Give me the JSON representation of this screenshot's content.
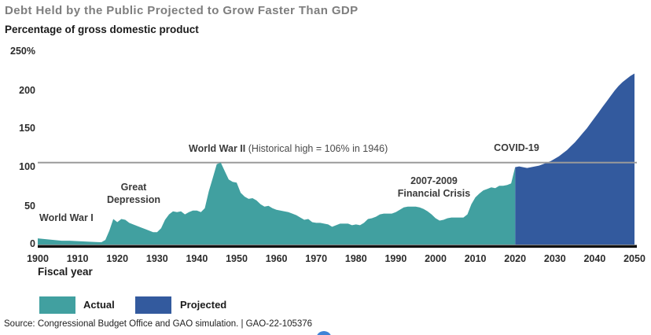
{
  "header": {
    "title": "Debt Held by the Public Projected to Grow Faster Than GDP",
    "subtitle": "Percentage of gross domestic product"
  },
  "y_axis": {
    "labels": [
      "250%",
      "200",
      "150",
      "100",
      "50",
      "0"
    ]
  },
  "x_axis": {
    "title": "Fiscal year",
    "labels": [
      "1900",
      "1910",
      "1920",
      "1930",
      "1940",
      "1950",
      "1960",
      "1970",
      "1980",
      "1990",
      "2000",
      "2010",
      "2020",
      "2030",
      "2040",
      "2050"
    ]
  },
  "annotations": {
    "ww1": "World War I",
    "great_depression_line1": "Great",
    "great_depression_line2": "Depression",
    "ww2": "World War II",
    "ww2_note": "(Historical high = 106% in 1946)",
    "financial_crisis_line1": "2007-2009",
    "financial_crisis_line2": "Financial Crisis",
    "covid": "COVID-19"
  },
  "legend": [
    {
      "label": "Actual",
      "color": "#41a0a0"
    },
    {
      "label": "Projected",
      "color": "#335a9e"
    }
  ],
  "source": "Source: Congressional Budget Office and GAO simulation.  |  GAO-22-105376",
  "colors": {
    "actual_fill": "#41a0a0",
    "projected_fill": "#335a9e",
    "historical_high_line": "#9a9a9a",
    "axis_line": "#111111",
    "play_dot": "#3f83d6"
  },
  "chart_data": {
    "type": "area",
    "title": "Debt Held by the Public Projected to Grow Faster Than GDP",
    "ylabel": "Percentage of gross domestic product",
    "xlabel": "Fiscal year",
    "x_range": [
      1900,
      2050
    ],
    "ylim": [
      0,
      250
    ],
    "grid": false,
    "legend_position": "bottom",
    "reference_line": {
      "value": 106,
      "label": "Historical high = 106% in 1946"
    },
    "series": [
      {
        "name": "Actual",
        "color": "#41a0a0",
        "points": [
          [
            1900,
            8
          ],
          [
            1902,
            7
          ],
          [
            1904,
            6
          ],
          [
            1906,
            5
          ],
          [
            1908,
            5
          ],
          [
            1910,
            4.5
          ],
          [
            1912,
            4
          ],
          [
            1914,
            3.5
          ],
          [
            1916,
            3
          ],
          [
            1917,
            6
          ],
          [
            1918,
            18
          ],
          [
            1919,
            33
          ],
          [
            1920,
            29
          ],
          [
            1921,
            33
          ],
          [
            1922,
            32
          ],
          [
            1923,
            28
          ],
          [
            1924,
            26
          ],
          [
            1925,
            24
          ],
          [
            1926,
            22
          ],
          [
            1927,
            20
          ],
          [
            1928,
            18
          ],
          [
            1929,
            16
          ],
          [
            1930,
            16
          ],
          [
            1931,
            21
          ],
          [
            1932,
            32
          ],
          [
            1933,
            39
          ],
          [
            1934,
            43
          ],
          [
            1935,
            42
          ],
          [
            1936,
            43
          ],
          [
            1937,
            39
          ],
          [
            1938,
            42
          ],
          [
            1939,
            44
          ],
          [
            1940,
            44
          ],
          [
            1941,
            42
          ],
          [
            1942,
            47
          ],
          [
            1943,
            69
          ],
          [
            1944,
            86
          ],
          [
            1945,
            104
          ],
          [
            1946,
            106
          ],
          [
            1947,
            95
          ],
          [
            1948,
            84
          ],
          [
            1949,
            81
          ],
          [
            1950,
            80
          ],
          [
            1951,
            67
          ],
          [
            1952,
            62
          ],
          [
            1953,
            59
          ],
          [
            1954,
            60
          ],
          [
            1955,
            57
          ],
          [
            1956,
            52
          ],
          [
            1957,
            49
          ],
          [
            1958,
            50
          ],
          [
            1959,
            47
          ],
          [
            1960,
            45
          ],
          [
            1961,
            44
          ],
          [
            1962,
            43
          ],
          [
            1963,
            42
          ],
          [
            1964,
            40
          ],
          [
            1965,
            38
          ],
          [
            1966,
            35
          ],
          [
            1967,
            32
          ],
          [
            1968,
            33
          ],
          [
            1969,
            29
          ],
          [
            1970,
            28
          ],
          [
            1971,
            28
          ],
          [
            1972,
            27
          ],
          [
            1973,
            26
          ],
          [
            1974,
            23
          ],
          [
            1975,
            25
          ],
          [
            1976,
            27
          ],
          [
            1977,
            27
          ],
          [
            1978,
            27
          ],
          [
            1979,
            25
          ],
          [
            1980,
            26
          ],
          [
            1981,
            25
          ],
          [
            1982,
            28
          ],
          [
            1983,
            33
          ],
          [
            1984,
            34
          ],
          [
            1985,
            36
          ],
          [
            1986,
            39
          ],
          [
            1987,
            40
          ],
          [
            1988,
            40
          ],
          [
            1989,
            40
          ],
          [
            1990,
            42
          ],
          [
            1991,
            45
          ],
          [
            1992,
            48
          ],
          [
            1993,
            49
          ],
          [
            1994,
            49
          ],
          [
            1995,
            49
          ],
          [
            1996,
            48
          ],
          [
            1997,
            46
          ],
          [
            1998,
            43
          ],
          [
            1999,
            39
          ],
          [
            2000,
            34
          ],
          [
            2001,
            31
          ],
          [
            2002,
            32
          ],
          [
            2003,
            34
          ],
          [
            2004,
            35
          ],
          [
            2005,
            35
          ],
          [
            2006,
            35
          ],
          [
            2007,
            35
          ],
          [
            2008,
            39
          ],
          [
            2009,
            52
          ],
          [
            2010,
            61
          ],
          [
            2011,
            66
          ],
          [
            2012,
            70
          ],
          [
            2013,
            72
          ],
          [
            2014,
            74
          ],
          [
            2015,
            73
          ],
          [
            2016,
            76
          ],
          [
            2017,
            76
          ],
          [
            2018,
            77
          ],
          [
            2019,
            79
          ],
          [
            2020,
            100
          ]
        ]
      },
      {
        "name": "Projected",
        "color": "#335a9e",
        "points": [
          [
            2020,
            100
          ],
          [
            2021,
            101
          ],
          [
            2022,
            100
          ],
          [
            2023,
            99
          ],
          [
            2024,
            100
          ],
          [
            2025,
            101
          ],
          [
            2026,
            102
          ],
          [
            2027,
            104
          ],
          [
            2028,
            106
          ],
          [
            2029,
            108
          ],
          [
            2030,
            111
          ],
          [
            2031,
            114
          ],
          [
            2032,
            118
          ],
          [
            2033,
            122
          ],
          [
            2034,
            127
          ],
          [
            2035,
            132
          ],
          [
            2036,
            138
          ],
          [
            2037,
            144
          ],
          [
            2038,
            150
          ],
          [
            2039,
            157
          ],
          [
            2040,
            164
          ],
          [
            2041,
            171
          ],
          [
            2042,
            178
          ],
          [
            2043,
            185
          ],
          [
            2044,
            192
          ],
          [
            2045,
            199
          ],
          [
            2046,
            205
          ],
          [
            2047,
            210
          ],
          [
            2048,
            214
          ],
          [
            2049,
            218
          ],
          [
            2050,
            221
          ]
        ]
      }
    ]
  }
}
